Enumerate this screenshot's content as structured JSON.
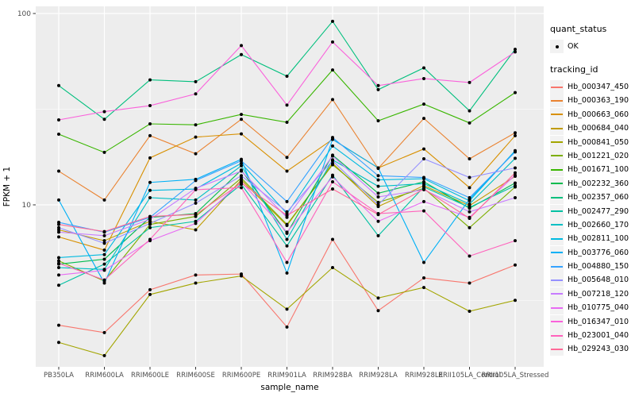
{
  "figure": {
    "background": "#FFFFFF",
    "panel_background": "#EDEDED",
    "grid_color": "#FFFFFF",
    "tick_text_color": "#4D4D4D",
    "point_color": "#000000"
  },
  "axes": {
    "x_label": "sample_name",
    "y_label": "FPKM + 1"
  },
  "legend": {
    "quant_status": {
      "title": "quant_status",
      "items": [
        {
          "label": "OK",
          "marker": "black-point"
        }
      ]
    },
    "tracking_id": {
      "title": "tracking_id"
    }
  },
  "chart_data": {
    "type": "line",
    "title": "",
    "xlabel": "sample_name",
    "ylabel": "FPKM + 1",
    "y_scale": "log10",
    "y_major_ticks": [
      100,
      10
    ],
    "y_minor_gridlines": [
      31.623,
      3.1623
    ],
    "y_domain": [
      1.42,
      109
    ],
    "grid": true,
    "legend_position": "right",
    "point_marker": "black dot (quant_status OK)",
    "categories": [
      "PB350LA",
      "RRIM600LA",
      "RRIM600LE",
      "RRIM600SE",
      "RRIM600PE",
      "RRIM901LA",
      "RRIM928BA",
      "RRIM928LA",
      "RRIM928LE",
      "RRII105LA_Control",
      "RRII105LA_Stressed"
    ],
    "series": [
      {
        "name": "Hb_000347_450",
        "color": "#F8766D",
        "values": [
          2.35,
          2.15,
          3.6,
          4.3,
          4.35,
          2.3,
          6.6,
          2.8,
          4.15,
          3.9,
          4.85
        ]
      },
      {
        "name": "Hb_000363_190",
        "color": "#EA8331",
        "values": [
          15.0,
          10.6,
          23.0,
          18.5,
          28.0,
          17.7,
          35.5,
          15.5,
          28.3,
          17.4,
          23.8
        ]
      },
      {
        "name": "Hb_000663_060",
        "color": "#D89000",
        "values": [
          6.8,
          5.8,
          17.6,
          22.6,
          23.5,
          15.0,
          22.0,
          15.6,
          19.6,
          12.3,
          23.0
        ]
      },
      {
        "name": "Hb_000684_040",
        "color": "#C09B00",
        "values": [
          7.4,
          6.5,
          8.2,
          7.4,
          13.5,
          7.8,
          16.5,
          9.8,
          12.6,
          9.9,
          14.1
        ]
      },
      {
        "name": "Hb_000841_050",
        "color": "#A3A500",
        "values": [
          1.91,
          1.63,
          3.4,
          3.9,
          4.25,
          2.85,
          4.7,
          3.26,
          3.7,
          2.78,
          3.17
        ]
      },
      {
        "name": "Hb_001221_020",
        "color": "#7CAE00",
        "values": [
          5.1,
          4.0,
          7.9,
          8.7,
          13.8,
          7.9,
          16.2,
          10.3,
          12.2,
          7.6,
          12.4
        ]
      },
      {
        "name": "Hb_001671_100",
        "color": "#39B600",
        "values": [
          23.4,
          18.8,
          26.5,
          26.2,
          29.7,
          27.0,
          50.7,
          27.5,
          33.6,
          26.8,
          38.6
        ]
      },
      {
        "name": "Hb_002232_360",
        "color": "#00BB4E",
        "values": [
          4.9,
          5.2,
          8.6,
          9.0,
          15.2,
          7.1,
          18.2,
          11.5,
          13.2,
          9.6,
          13.0
        ]
      },
      {
        "name": "Hb_002357_060",
        "color": "#00BF7D",
        "values": [
          42.0,
          28.0,
          45.0,
          44.0,
          61.0,
          47.0,
          91.0,
          40.0,
          52.0,
          31.0,
          65.0
        ]
      },
      {
        "name": "Hb_002477_290",
        "color": "#00C1A3",
        "values": [
          3.8,
          4.9,
          7.6,
          8.2,
          12.8,
          6.1,
          14.3,
          6.9,
          12.4,
          9.7,
          12.6
        ]
      },
      {
        "name": "Hb_002660_170",
        "color": "#00BFC4",
        "values": [
          4.7,
          4.6,
          10.9,
          10.6,
          16.0,
          6.6,
          17.2,
          12.5,
          12.9,
          10.1,
          17.5
        ]
      },
      {
        "name": "Hb_002811_100",
        "color": "#00BAE0",
        "values": [
          5.3,
          5.5,
          11.9,
          12.1,
          16.5,
          9.0,
          20.3,
          13.5,
          13.7,
          10.5,
          19.2
        ]
      },
      {
        "name": "Hb_003776_060",
        "color": "#00B0F6",
        "values": [
          10.6,
          3.9,
          13.1,
          13.6,
          17.3,
          4.4,
          22.0,
          15.6,
          5.0,
          10.7,
          19.0
        ]
      },
      {
        "name": "Hb_004880_150",
        "color": "#35A2FF",
        "values": [
          8.1,
          7.2,
          8.6,
          13.4,
          17.0,
          10.4,
          22.5,
          14.2,
          13.9,
          10.9,
          18.9
        ]
      },
      {
        "name": "Hb_005648_010",
        "color": "#9590FF",
        "values": [
          7.6,
          6.3,
          8.0,
          10.2,
          14.2,
          9.2,
          17.0,
          10.0,
          17.4,
          13.9,
          15.6
        ]
      },
      {
        "name": "Hb_007218_120",
        "color": "#C77CFF",
        "values": [
          7.2,
          6.9,
          8.4,
          12.2,
          15.0,
          8.6,
          18.0,
          11.0,
          12.0,
          9.2,
          10.9
        ]
      },
      {
        "name": "Hb_010775_040",
        "color": "#E76BF3",
        "values": [
          4.3,
          4.55,
          6.5,
          8.0,
          13.2,
          7.2,
          14.0,
          8.2,
          10.4,
          8.6,
          14.3
        ]
      },
      {
        "name": "Hb_016347_010",
        "color": "#FA62DB",
        "values": [
          27.8,
          30.7,
          33.0,
          38.0,
          68.0,
          33.2,
          71.0,
          42.0,
          45.7,
          43.6,
          63.0
        ]
      },
      {
        "name": "Hb_023001_040",
        "color": "#FF62BC",
        "values": [
          4.95,
          4.05,
          6.6,
          12.0,
          12.3,
          5.0,
          13.2,
          9.0,
          9.3,
          5.4,
          6.5
        ]
      },
      {
        "name": "Hb_029243_030",
        "color": "#FF6A98",
        "values": [
          7.9,
          7.25,
          8.7,
          8.9,
          13.0,
          8.8,
          12.1,
          8.9,
          12.1,
          8.5,
          14.7
        ]
      }
    ]
  }
}
